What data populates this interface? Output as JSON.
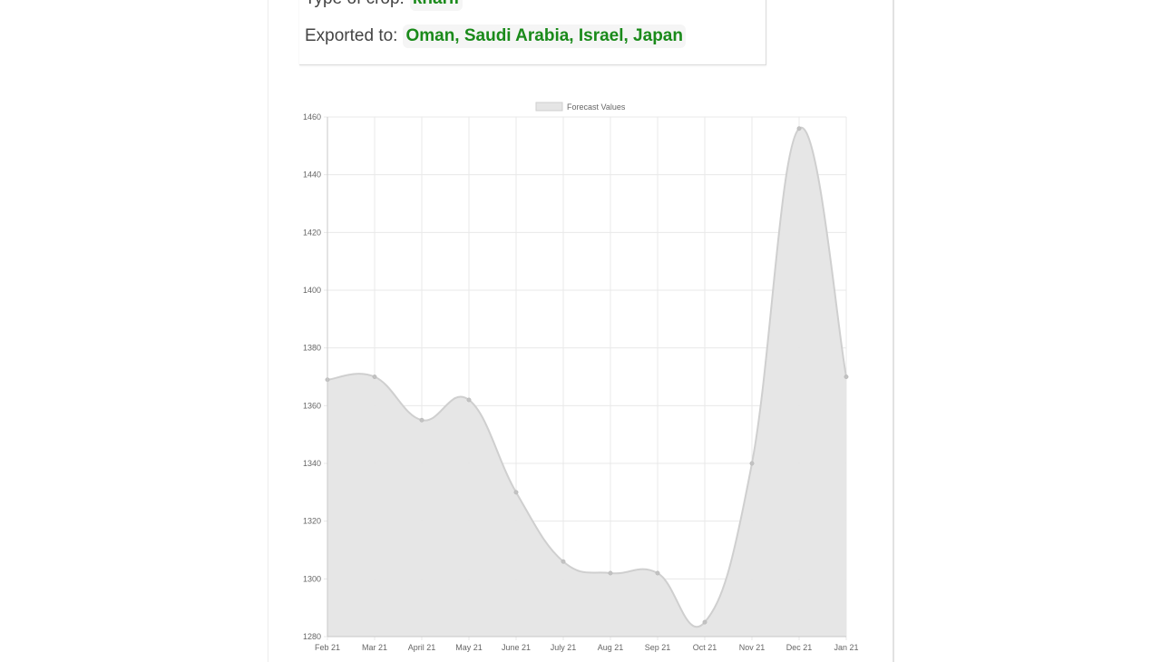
{
  "info": {
    "crop_label": "Type of crop:",
    "crop_value": "kharif",
    "export_label": "Exported to:",
    "export_value": "Oman, Saudi Arabia, Israel, Japan"
  },
  "chart_data": {
    "type": "area",
    "title": "",
    "xlabel": "",
    "ylabel": "",
    "legend": {
      "position": "top",
      "entries": [
        "Forecast Values"
      ]
    },
    "categories": [
      "Feb 21",
      "Mar 21",
      "April 21",
      "May 21",
      "June 21",
      "July 21",
      "Aug 21",
      "Sep 21",
      "Oct 21",
      "Nov 21",
      "Dec 21",
      "Jan 21"
    ],
    "series": [
      {
        "name": "Forecast Values",
        "values": [
          1369,
          1370,
          1355,
          1362,
          1330,
          1306,
          1302,
          1302,
          1285,
          1340,
          1456,
          1370
        ]
      }
    ],
    "ylim": [
      1280,
      1460
    ],
    "yticks": [
      1280,
      1300,
      1320,
      1340,
      1360,
      1380,
      1400,
      1420,
      1440,
      1460
    ],
    "grid": true,
    "colors": {
      "fill": "#e5e5e5",
      "line": "#cfcfcf",
      "point": "#c2c2c2",
      "grid": "#e8e8e8"
    }
  }
}
